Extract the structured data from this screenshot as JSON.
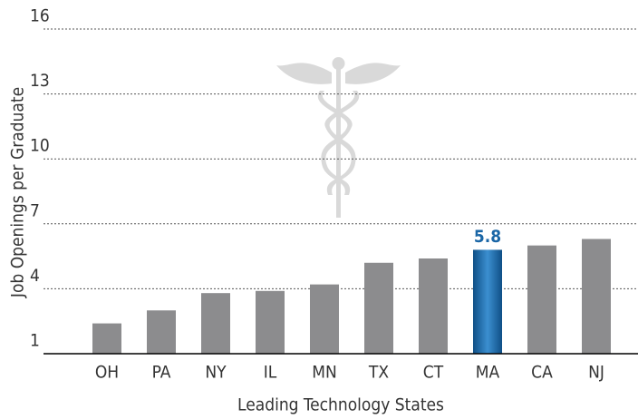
{
  "chart_data": {
    "type": "bar",
    "x_label": "Leading Technology States",
    "y_label": "Job Openings per Graduate",
    "categories": [
      "OH",
      "PA",
      "NY",
      "IL",
      "MN",
      "TX",
      "CT",
      "MA",
      "CA",
      "NJ"
    ],
    "values": [
      2.4,
      3.0,
      3.8,
      3.9,
      4.2,
      5.2,
      5.4,
      5.8,
      6.0,
      6.3
    ],
    "value_labels": [
      null,
      null,
      null,
      null,
      null,
      null,
      null,
      "5.8",
      null,
      null
    ],
    "colors": [
      "#8c8c8e",
      "#8c8c8e",
      "#8c8c8e",
      "#8c8c8e",
      "#8c8c8e",
      "#8c8c8e",
      "#8c8c8e",
      "#1a66a6",
      "#8c8c8e",
      "#8c8c8e"
    ],
    "ylim": [
      1,
      16
    ],
    "yticks": [
      1,
      4,
      7,
      10,
      13,
      16
    ],
    "grid": true
  }
}
